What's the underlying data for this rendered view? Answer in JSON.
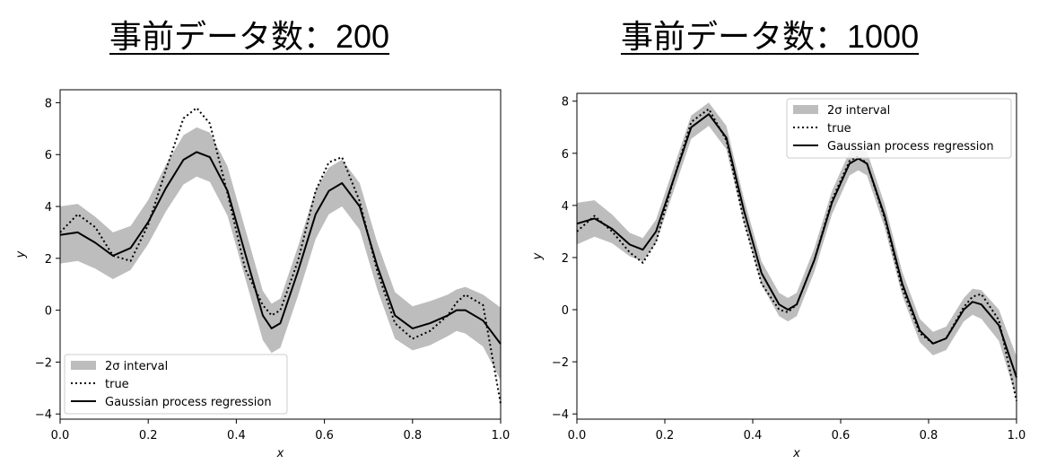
{
  "headings": {
    "left": {
      "prefix": "事前データ数：",
      "count": "200"
    },
    "right": {
      "prefix": "事前データ数：",
      "count": "1000"
    }
  },
  "colors": {
    "band": "#bdbdbd",
    "line": "#000000",
    "true": "#000000"
  },
  "chart_data": [
    {
      "type": "line",
      "xlabel": "x",
      "ylabel": "y",
      "xlim": [
        0.0,
        1.0
      ],
      "ylim": [
        -4.2,
        8.5
      ],
      "xticks": [
        "0.0",
        "0.2",
        "0.4",
        "0.6",
        "0.8",
        "1.0"
      ],
      "yticks": [
        "−4",
        "−2",
        "0",
        "2",
        "4",
        "6",
        "8"
      ],
      "legend_position": "lower-left",
      "legend": [
        "2σ interval",
        "true",
        "Gaussian process regression"
      ],
      "x": [
        0.0,
        0.04,
        0.08,
        0.12,
        0.16,
        0.2,
        0.24,
        0.28,
        0.31,
        0.34,
        0.38,
        0.42,
        0.46,
        0.48,
        0.5,
        0.54,
        0.58,
        0.61,
        0.64,
        0.68,
        0.72,
        0.76,
        0.8,
        0.84,
        0.88,
        0.9,
        0.92,
        0.96,
        1.0
      ],
      "series": [
        {
          "name": "true",
          "style": "dotted",
          "values": [
            3.0,
            3.7,
            3.2,
            2.1,
            1.9,
            3.3,
            5.4,
            7.4,
            7.8,
            7.2,
            4.5,
            1.6,
            0.2,
            -0.2,
            0.0,
            1.9,
            4.6,
            5.7,
            5.9,
            4.2,
            1.5,
            -0.5,
            -1.1,
            -0.8,
            -0.2,
            0.3,
            0.6,
            0.2,
            -3.6
          ]
        },
        {
          "name": "Gaussian process regression",
          "style": "solid",
          "values": [
            2.9,
            3.0,
            2.6,
            2.1,
            2.4,
            3.4,
            4.7,
            5.8,
            6.1,
            5.9,
            4.6,
            2.2,
            -0.2,
            -0.7,
            -0.5,
            1.5,
            3.7,
            4.6,
            4.9,
            4.0,
            1.7,
            -0.2,
            -0.7,
            -0.5,
            -0.2,
            0.0,
            0.0,
            -0.4,
            -1.3
          ]
        }
      ],
      "band_halfwidth": [
        1.1,
        1.1,
        1.0,
        0.9,
        0.85,
        0.85,
        0.9,
        0.95,
        0.95,
        0.95,
        0.95,
        0.95,
        0.95,
        0.95,
        0.95,
        0.95,
        0.95,
        0.9,
        0.9,
        0.9,
        0.9,
        0.9,
        0.85,
        0.85,
        0.8,
        0.8,
        0.9,
        1.0,
        1.4
      ]
    },
    {
      "type": "line",
      "xlabel": "x",
      "ylabel": "y",
      "xlim": [
        0.0,
        1.0
      ],
      "ylim": [
        -4.2,
        8.3
      ],
      "xticks": [
        "0.0",
        "0.2",
        "0.4",
        "0.6",
        "0.8",
        "1.0"
      ],
      "yticks": [
        "−4",
        "−2",
        "0",
        "2",
        "4",
        "6",
        "8"
      ],
      "legend_position": "upper-right",
      "legend": [
        "2σ interval",
        "true",
        "Gaussian process regression"
      ],
      "x": [
        0.0,
        0.04,
        0.08,
        0.12,
        0.15,
        0.18,
        0.22,
        0.26,
        0.3,
        0.34,
        0.38,
        0.42,
        0.46,
        0.48,
        0.5,
        0.54,
        0.58,
        0.62,
        0.64,
        0.66,
        0.7,
        0.74,
        0.78,
        0.81,
        0.84,
        0.88,
        0.9,
        0.92,
        0.96,
        1.0
      ],
      "series": [
        {
          "name": "true",
          "style": "dotted",
          "values": [
            3.0,
            3.6,
            3.0,
            2.2,
            1.8,
            2.6,
            5.0,
            7.2,
            7.7,
            6.5,
            3.4,
            1.0,
            0.0,
            -0.1,
            0.2,
            1.9,
            4.2,
            5.7,
            5.9,
            5.6,
            3.5,
            0.8,
            -0.9,
            -1.3,
            -1.1,
            0.1,
            0.5,
            0.6,
            -0.4,
            -3.5
          ]
        },
        {
          "name": "Gaussian process regression",
          "style": "solid",
          "values": [
            3.3,
            3.5,
            3.1,
            2.5,
            2.3,
            3.0,
            5.0,
            7.0,
            7.5,
            6.6,
            3.8,
            1.4,
            0.2,
            0.0,
            0.2,
            1.9,
            4.1,
            5.6,
            5.8,
            5.6,
            3.6,
            1.0,
            -0.8,
            -1.3,
            -1.1,
            0.0,
            0.3,
            0.2,
            -0.6,
            -2.6
          ]
        }
      ],
      "band_halfwidth": [
        0.8,
        0.7,
        0.55,
        0.45,
        0.45,
        0.45,
        0.45,
        0.45,
        0.45,
        0.45,
        0.45,
        0.45,
        0.45,
        0.45,
        0.45,
        0.45,
        0.45,
        0.45,
        0.45,
        0.45,
        0.45,
        0.45,
        0.45,
        0.45,
        0.45,
        0.45,
        0.5,
        0.55,
        0.6,
        0.8
      ]
    }
  ]
}
